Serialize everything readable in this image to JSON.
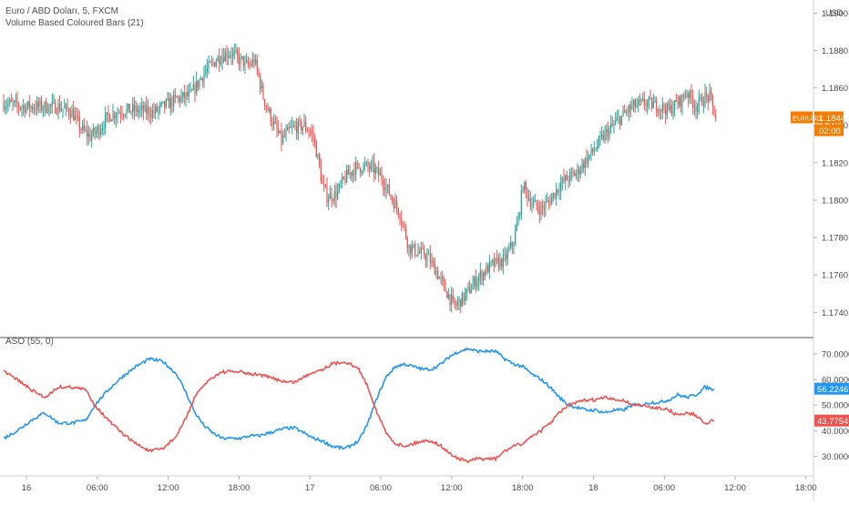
{
  "colors": {
    "up": "#26a69a",
    "down": "#ef5350",
    "aso_bull": "#2196f3",
    "aso_bear": "#ef5350",
    "symbol_badge": "#f57c00",
    "axis_text": "#4a4a4a",
    "divider": "#555555"
  },
  "main_pane": {
    "title": "Euro / ABD Doları, 5, FXCM",
    "indicator": "Volume Based Coloured Bars (21)",
    "currency": "USD",
    "symbol_tag": "EURUSD",
    "last_price": "1.1844",
    "countdown": "02:00"
  },
  "sub_pane": {
    "title": "ASO (55, 0)",
    "bull_value": "56.2246",
    "bear_value": "43.7754"
  },
  "chart_data": [
    {
      "type": "candlestick",
      "title": "Euro / ABD Doları, 5, FXCM",
      "yticks": [
        "1.1900",
        "1.1880",
        "1.1860",
        "1.1840",
        "1.1820",
        "1.1800",
        "1.1780",
        "1.1760",
        "1.1740"
      ],
      "ylim": [
        1.1727,
        1.1907
      ],
      "close_path": {
        "x": [
          0,
          4,
          8,
          12,
          15,
          17,
          19,
          21,
          23,
          26,
          30,
          33,
          35,
          38,
          41,
          44,
          47,
          49.5,
          51,
          52,
          52.5,
          53,
          54,
          55,
          56,
          57,
          59,
          61,
          63,
          66,
          68,
          69,
          70,
          71,
          73,
          75,
          77,
          79,
          81,
          83,
          85,
          87,
          89,
          91,
          93,
          95,
          97,
          99,
          101,
          104,
          107,
          110,
          112,
          113,
          114,
          116,
          118,
          120,
          121,
          122,
          123,
          124,
          126,
          128,
          130,
          132,
          135,
          138,
          141,
          144,
          146,
          148,
          149,
          150,
          152,
          154,
          155,
          156.5
        ],
        "close": [
          1.1852,
          1.185,
          1.185,
          1.185,
          1.1847,
          1.1838,
          1.1834,
          1.1838,
          1.1845,
          1.1848,
          1.1848,
          1.1847,
          1.185,
          1.1854,
          1.1856,
          1.1868,
          1.1876,
          1.1879,
          1.1877,
          1.1874,
          1.1875,
          1.1872,
          1.1872,
          1.1875,
          1.1866,
          1.1855,
          1.1842,
          1.1832,
          1.1838,
          1.184,
          1.1834,
          1.1822,
          1.1808,
          1.1802,
          1.1803,
          1.1812,
          1.1817,
          1.1818,
          1.1817,
          1.1812,
          1.1802,
          1.1793,
          1.1775,
          1.1772,
          1.177,
          1.1762,
          1.1752,
          1.1743,
          1.1748,
          1.1758,
          1.1765,
          1.1768,
          1.1778,
          1.179,
          1.1808,
          1.1798,
          1.1795,
          1.18,
          1.1804,
          1.1808,
          1.181,
          1.1812,
          1.1815,
          1.1822,
          1.1828,
          1.1835,
          1.1843,
          1.185,
          1.1852,
          1.185,
          1.1848,
          1.1852,
          1.1854,
          1.1858,
          1.185,
          1.1855,
          1.1855,
          1.1843
        ]
      }
    },
    {
      "type": "line",
      "title": "ASO (55, 0)",
      "yticks": [
        "70.0000",
        "60.0000",
        "50.0000",
        "40.0000",
        "30.0000"
      ],
      "ylim": [
        22.7,
        76.0
      ],
      "series": [
        {
          "x": [
            0,
            3,
            6,
            9,
            12,
            15,
            18,
            20,
            23,
            26,
            29,
            32,
            35,
            38,
            40,
            42,
            44,
            46,
            48,
            50,
            52,
            54,
            56,
            58,
            60,
            62,
            64,
            66,
            68,
            70,
            72,
            75,
            78,
            80,
            82,
            84,
            86,
            88,
            90,
            92,
            94,
            96,
            98,
            100,
            102,
            104,
            106,
            108,
            110,
            112,
            114,
            116,
            118,
            120,
            122,
            124,
            126,
            128,
            130,
            132,
            134,
            136,
            138,
            140,
            142,
            144,
            146,
            148,
            150,
            152,
            154,
            156
          ],
          "values": [
            37,
            40,
            44,
            47,
            43,
            43,
            44,
            50,
            56,
            61,
            65,
            68,
            67,
            62,
            55,
            47,
            42,
            39,
            37,
            37,
            37,
            38,
            38,
            39,
            40,
            41,
            41,
            39,
            37,
            36,
            34,
            33,
            36,
            43,
            53,
            61,
            65,
            66,
            65,
            64,
            64,
            66,
            69,
            71,
            72,
            71,
            71,
            71,
            68,
            66,
            65,
            62,
            60,
            57,
            53,
            50,
            49,
            48,
            48,
            47,
            48,
            48,
            50,
            50,
            51,
            51,
            52,
            54,
            53,
            54,
            57,
            56
          ]
        },
        {
          "x": [
            0,
            3,
            6,
            9,
            12,
            15,
            18,
            20,
            23,
            26,
            29,
            32,
            35,
            38,
            40,
            42,
            44,
            46,
            48,
            50,
            52,
            54,
            56,
            58,
            60,
            62,
            64,
            66,
            68,
            70,
            72,
            75,
            78,
            80,
            82,
            84,
            86,
            88,
            90,
            92,
            94,
            96,
            98,
            100,
            102,
            104,
            106,
            108,
            110,
            112,
            114,
            116,
            118,
            120,
            122,
            124,
            126,
            128,
            130,
            132,
            134,
            136,
            138,
            140,
            142,
            144,
            146,
            148,
            150,
            152,
            154,
            156
          ],
          "values": [
            63,
            60,
            56,
            53,
            57,
            57,
            56,
            50,
            44,
            39,
            35,
            32,
            33,
            38,
            45,
            53,
            58,
            61,
            63,
            63,
            63,
            62,
            62,
            61,
            60,
            59,
            59,
            61,
            63,
            64,
            66,
            67,
            64,
            57,
            47,
            39,
            35,
            34,
            35,
            36,
            36,
            34,
            31,
            29,
            28,
            29,
            29,
            29,
            32,
            34,
            35,
            38,
            40,
            43,
            47,
            50,
            51,
            52,
            52,
            53,
            52,
            52,
            50,
            50,
            49,
            49,
            48,
            46,
            47,
            46,
            43,
            44
          ]
        }
      ]
    }
  ],
  "x_axis": {
    "labels": [
      "16",
      "06:00",
      "12:00",
      "18:00",
      "17",
      "06:00",
      "12:00",
      "18:00",
      "18",
      "06:00",
      "12:00",
      "18:00"
    ]
  }
}
